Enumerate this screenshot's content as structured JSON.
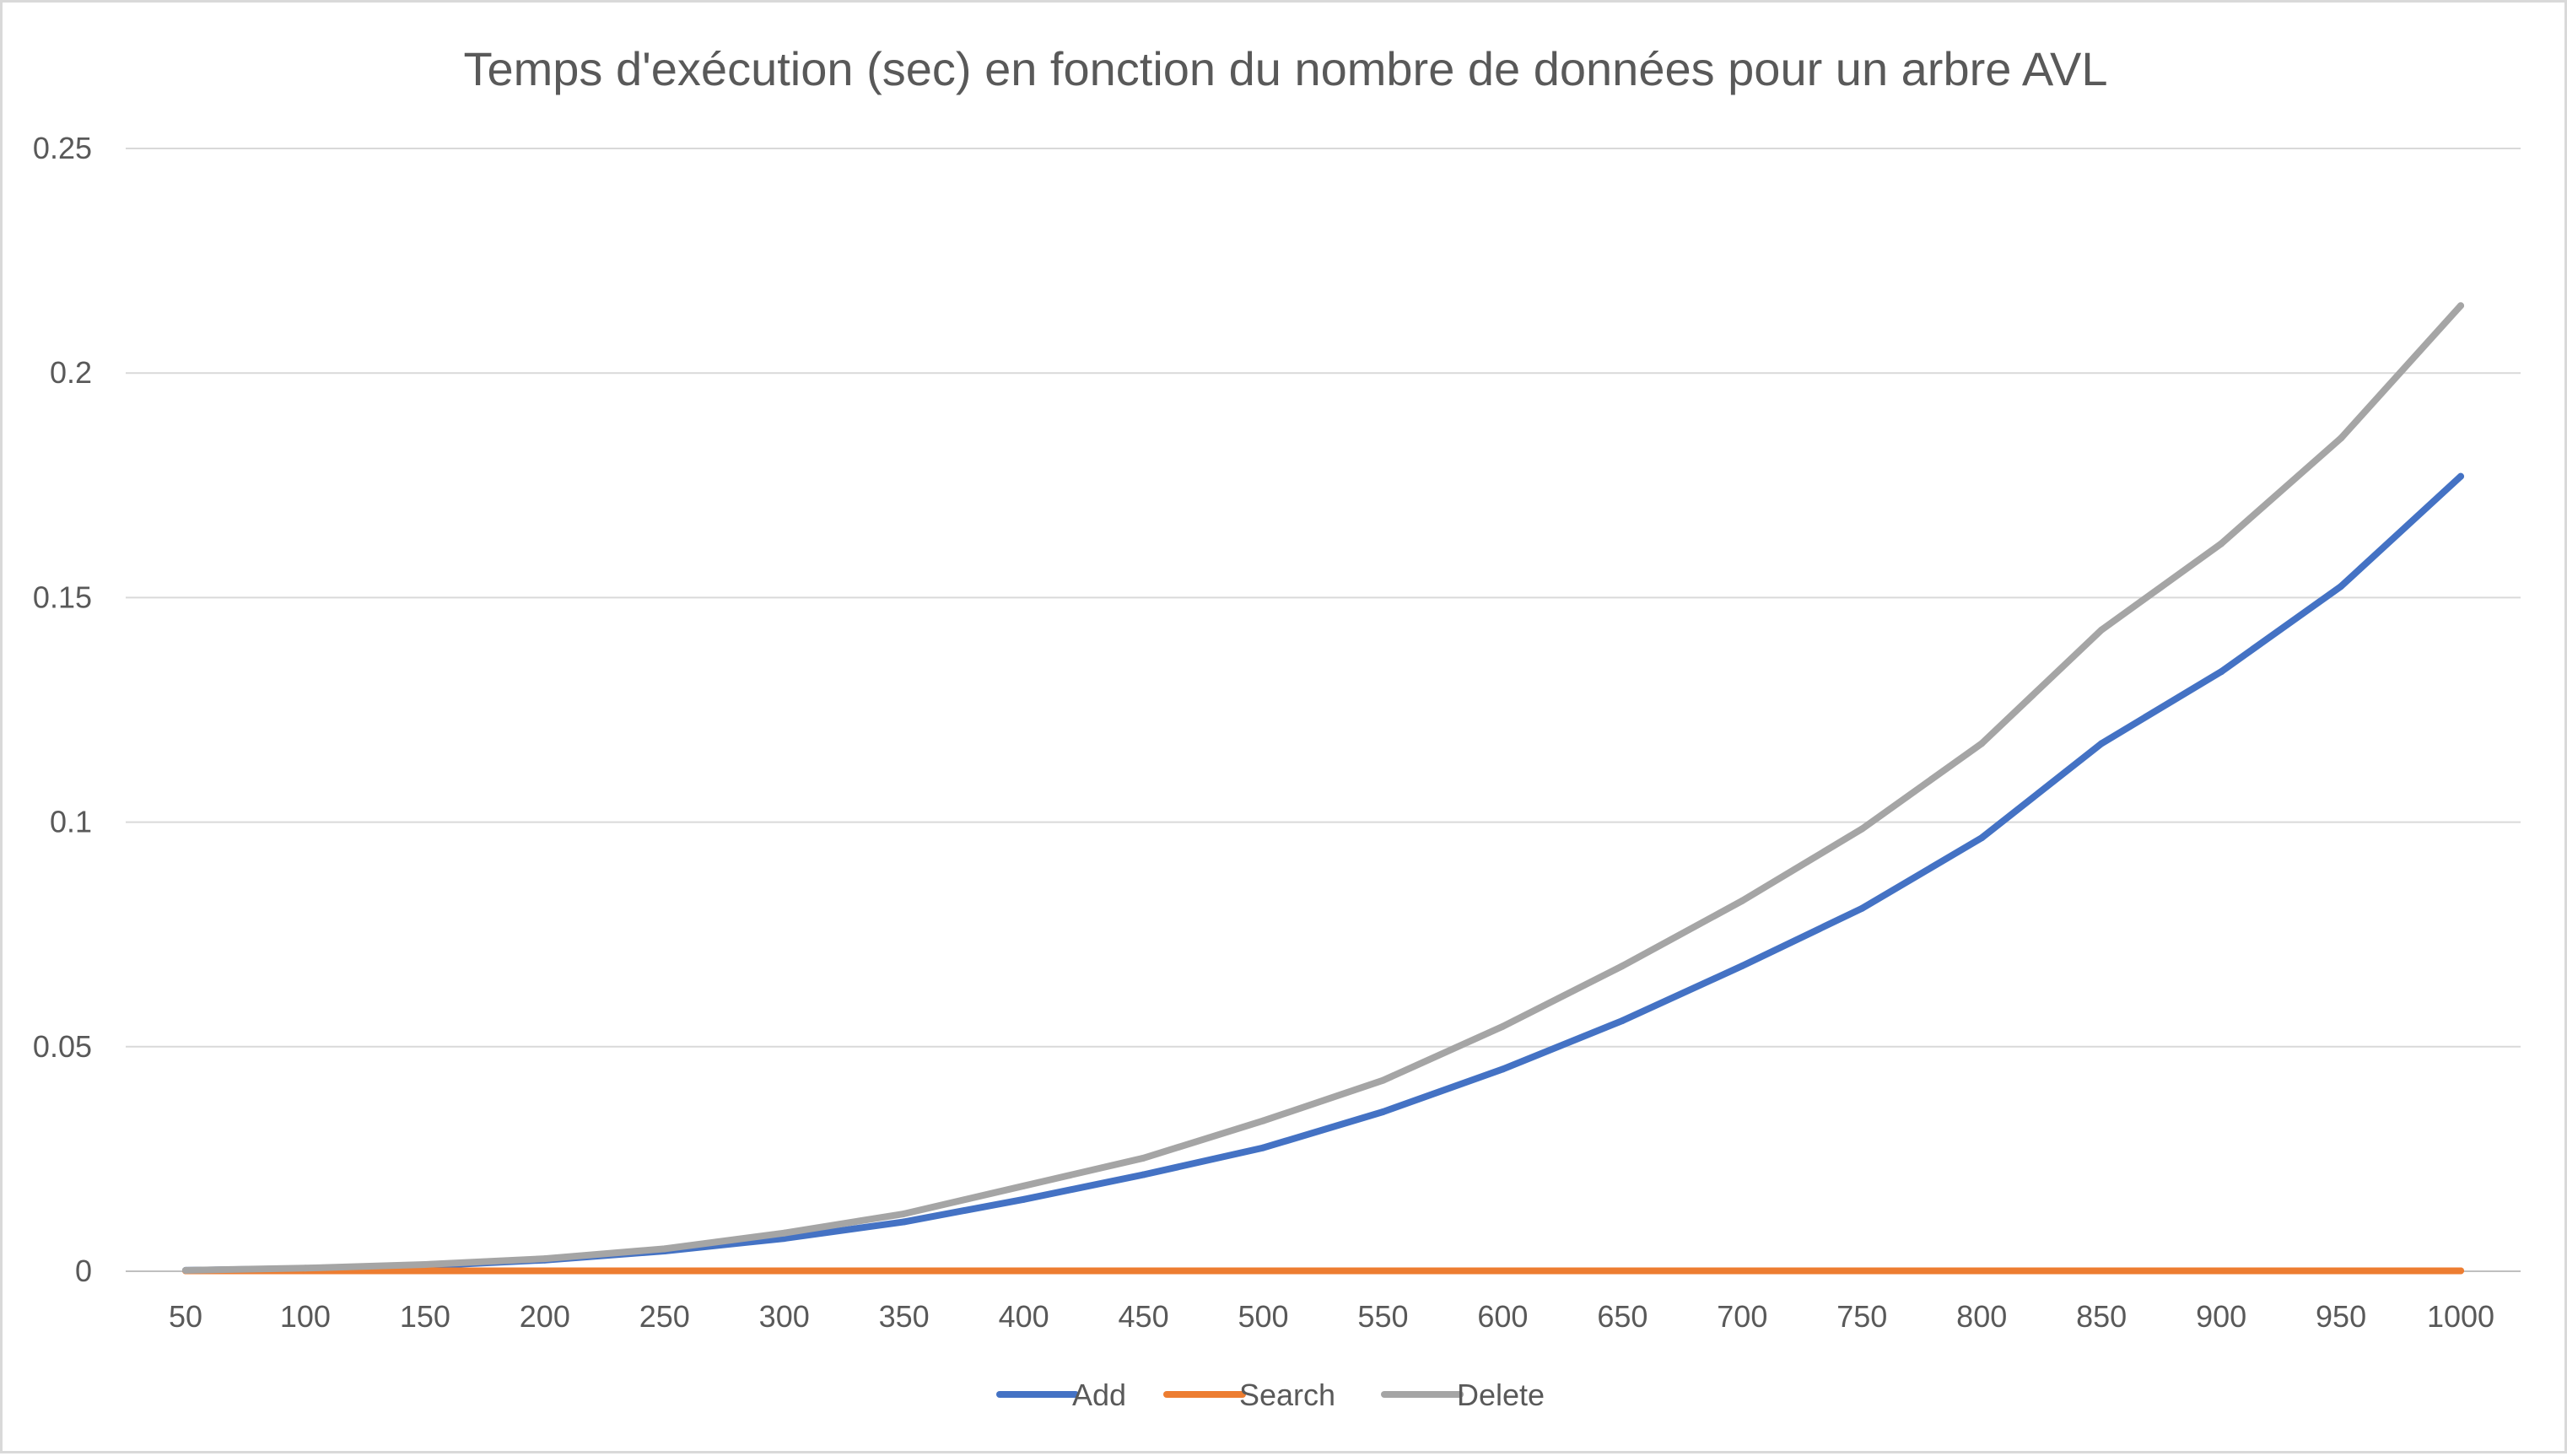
{
  "chart_data": {
    "type": "line",
    "title": "Temps d'exécution (sec) en fonction du nombre de données pour un arbre AVL",
    "xlabel": "",
    "ylabel": "",
    "categories": [
      "50",
      "100",
      "150",
      "200",
      "250",
      "300",
      "350",
      "400",
      "450",
      "500",
      "550",
      "600",
      "650",
      "700",
      "750",
      "800",
      "850",
      "900",
      "950",
      "1000"
    ],
    "ylim": [
      0,
      0.25
    ],
    "y_ticks": [
      "0",
      "0.05",
      "0.1",
      "0.15",
      "0.2",
      "0.25"
    ],
    "y_tick_values": [
      0,
      0.05,
      0.1,
      0.15,
      0.2,
      0.25
    ],
    "grid": true,
    "legend_position": "bottom",
    "series": [
      {
        "name": "Add",
        "color": "#4472c4",
        "values": [
          0.0002,
          0.0006,
          0.0012,
          0.0025,
          0.0045,
          0.0073,
          0.011,
          0.016,
          0.0215,
          0.0275,
          0.0355,
          0.045,
          0.0558,
          0.068,
          0.0808,
          0.0965,
          0.1175,
          0.1335,
          0.1525,
          0.177
        ]
      },
      {
        "name": "Search",
        "color": "#ed7d31",
        "values": [
          0.0001,
          0.0001,
          0.0001,
          0.0001,
          0.0001,
          0.0001,
          0.0001,
          0.0001,
          0.0001,
          0.0001,
          0.0001,
          0.0001,
          0.0001,
          0.0001,
          0.0001,
          0.0001,
          0.0001,
          0.0001,
          0.0001,
          0.0001
        ]
      },
      {
        "name": "Delete",
        "color": "#a5a5a5",
        "values": [
          0.0002,
          0.0007,
          0.0015,
          0.0028,
          0.005,
          0.0085,
          0.0128,
          0.019,
          0.0252,
          0.0335,
          0.0425,
          0.0545,
          0.068,
          0.0825,
          0.0985,
          0.1175,
          0.1428,
          0.162,
          0.1855,
          0.215
        ]
      }
    ]
  }
}
